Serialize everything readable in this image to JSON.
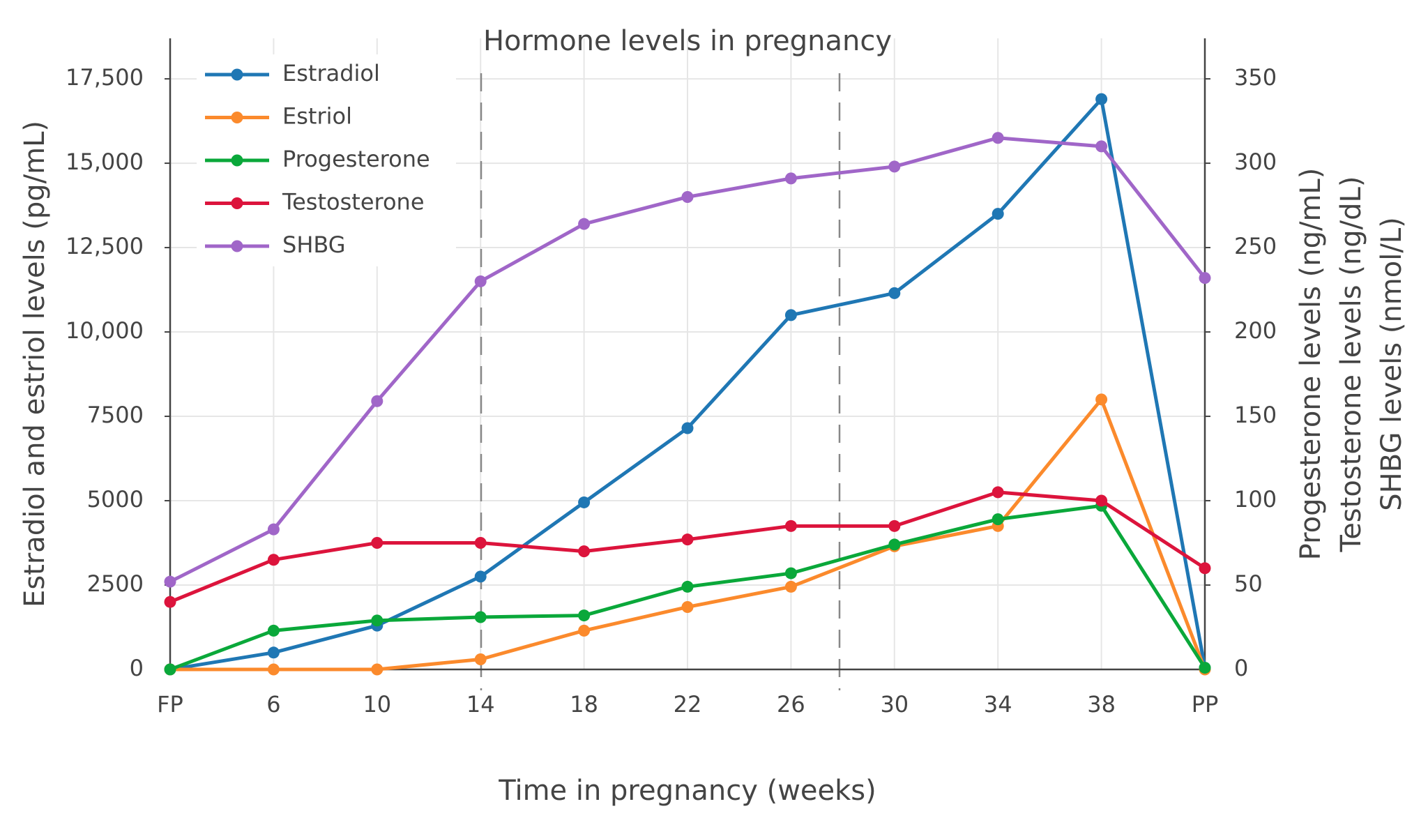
{
  "chart_data": {
    "type": "line",
    "title": "Hormone levels in pregnancy",
    "x_label": "Time in pregnancy (weeks)",
    "y_label": "Estradiol and estriol levels (pg/mL)",
    "y2_labels": [
      "Progesterone levels (ng/mL)",
      "Testosterone levels (ng/dL)",
      "SHBG levels (nmol/L)"
    ],
    "categories": [
      "FP",
      "6",
      "10",
      "14",
      "18",
      "22",
      "26",
      "30",
      "34",
      "38",
      "PP"
    ],
    "series": [
      {
        "name": "Estradiol",
        "color": "#1f77b4",
        "values": [
          0,
          500,
          1300,
          2750,
          4950,
          7150,
          10500,
          11150,
          13500,
          16900,
          50
        ]
      },
      {
        "name": "Estriol",
        "color": "#fb8a2c",
        "values": [
          0,
          0,
          0,
          300,
          1150,
          1850,
          2450,
          3650,
          4250,
          8000,
          0
        ]
      },
      {
        "name": "Progesterone",
        "color": "#0aa83a",
        "axis": "y2",
        "values": [
          0,
          23,
          29,
          31,
          32,
          49,
          57,
          74,
          89,
          97,
          1
        ]
      },
      {
        "name": "Testosterone",
        "color": "#dc143c",
        "axis": "y2",
        "values": [
          40,
          65,
          75,
          75,
          70,
          77,
          85,
          85,
          105,
          100,
          60
        ]
      },
      {
        "name": "SHBG",
        "color": "#a066c8",
        "axis": "y2",
        "values": [
          52,
          83,
          159,
          230,
          264,
          280,
          291,
          298,
          315,
          310,
          232
        ]
      }
    ],
    "ylim": [
      0,
      18700
    ],
    "yticks": [
      0,
      2500,
      5000,
      7500,
      {
        "value": 10000,
        "label": "10,000"
      },
      {
        "value": 12500,
        "label": "12,500"
      },
      {
        "value": 15000,
        "label": "15,000"
      },
      {
        "value": 17500,
        "label": "17,500"
      }
    ],
    "y2lim": [
      0,
      374
    ],
    "y2ticks": [
      0,
      50,
      100,
      150,
      200,
      250,
      300,
      350
    ],
    "grid": true,
    "legend": "top-left"
  }
}
